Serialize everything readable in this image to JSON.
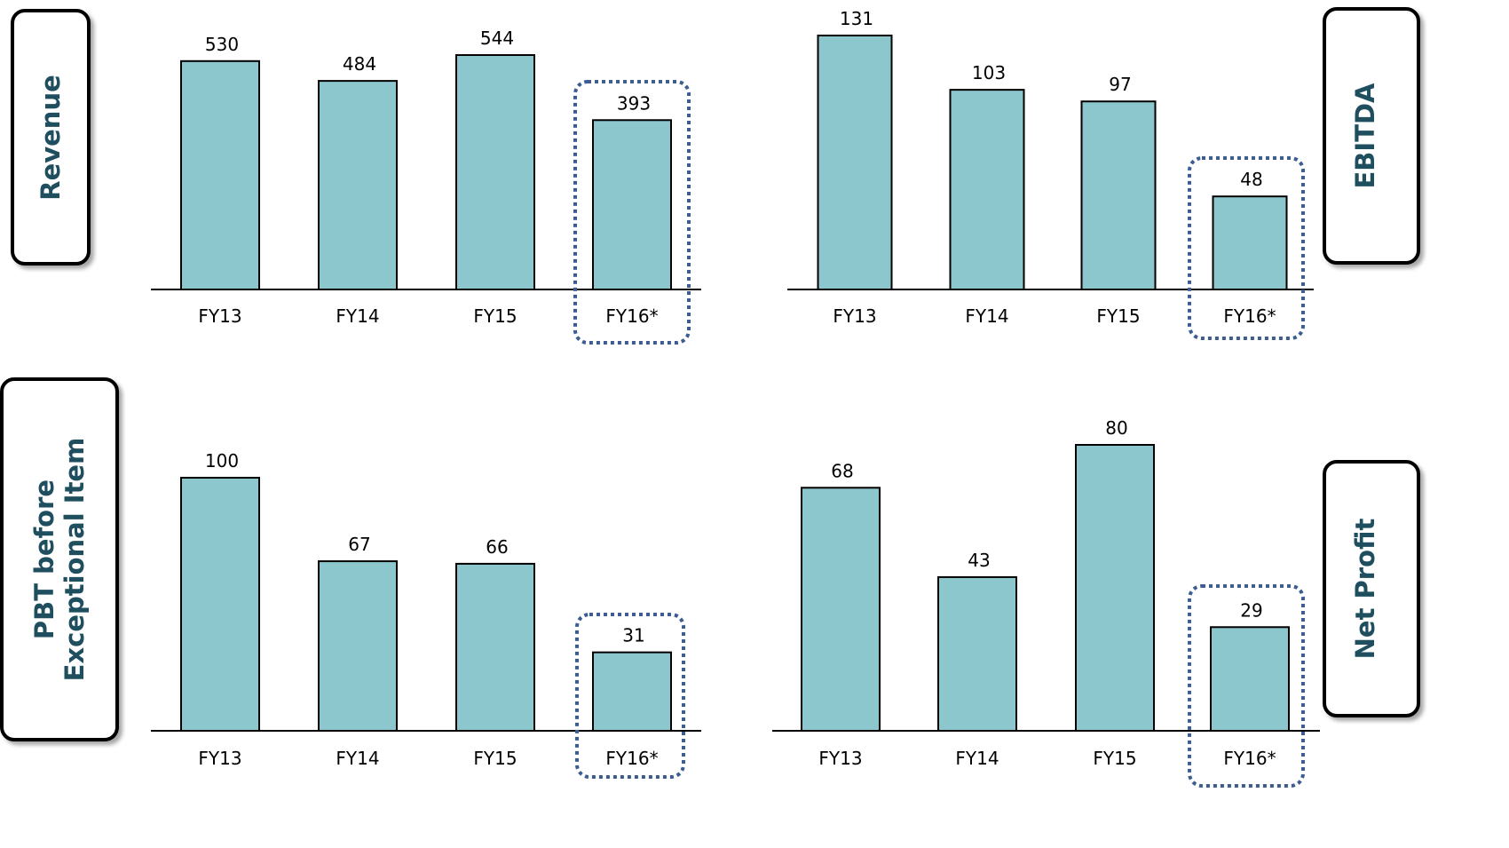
{
  "colors": {
    "bar_fill": "#8cc7ce",
    "bar_stroke": "#000000",
    "highlight_stroke": "#3b5d8f",
    "panel_label": "#1f4e5f"
  },
  "chart_data": [
    {
      "type": "bar",
      "panel_label": "Revenue",
      "categories": [
        "FY13",
        "FY14",
        "FY15",
        "FY16*"
      ],
      "values": [
        530,
        484,
        544,
        393
      ],
      "highlight_category": "FY16*",
      "ylim": [
        0,
        544
      ],
      "grid": false
    },
    {
      "type": "bar",
      "panel_label": "EBITDA",
      "categories": [
        "FY13",
        "FY14",
        "FY15",
        "FY16*"
      ],
      "values": [
        131,
        103,
        97,
        48
      ],
      "highlight_category": "FY16*",
      "ylim": [
        0,
        131
      ],
      "grid": false
    },
    {
      "type": "bar",
      "panel_label": "PBT before Exceptional Item",
      "categories": [
        "FY13",
        "FY14",
        "FY15",
        "FY16*"
      ],
      "values": [
        100,
        67,
        66,
        31
      ],
      "highlight_category": "FY16*",
      "ylim": [
        0,
        100
      ],
      "grid": false
    },
    {
      "type": "bar",
      "panel_label": "Net Profit",
      "categories": [
        "FY13",
        "FY14",
        "FY15",
        "FY16*"
      ],
      "values": [
        68,
        43,
        80,
        29
      ],
      "highlight_category": "FY16*",
      "ylim": [
        0,
        80
      ],
      "grid": false
    }
  ]
}
